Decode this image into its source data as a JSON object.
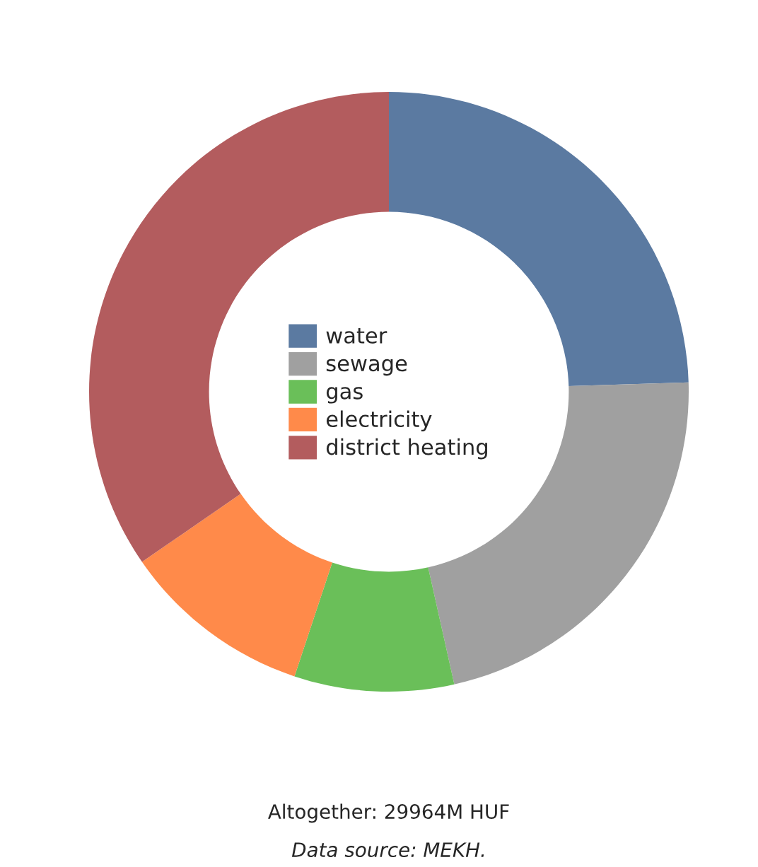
{
  "chart_data": {
    "type": "donut",
    "categories": [
      "water",
      "sewage",
      "gas",
      "electricity",
      "district heating"
    ],
    "values": [
      24.5,
      22,
      8.6,
      10.3,
      34.6
    ],
    "colors": [
      "#5b7aa1",
      "#a0a0a0",
      "#6abf59",
      "#ff8a4a",
      "#b35c5e"
    ],
    "legend": "center",
    "annotations": [
      "Altogether: 29964M HUF",
      "Data source: MEKH."
    ]
  }
}
